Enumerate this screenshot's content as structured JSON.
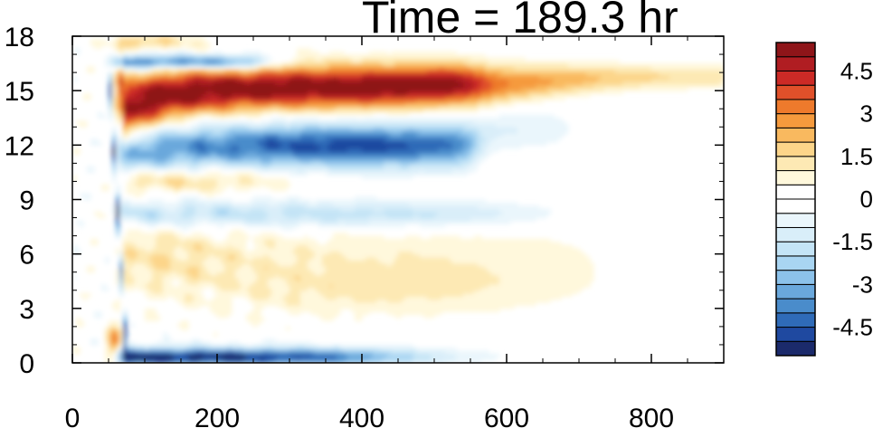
{
  "chart_data": {
    "type": "heatmap",
    "title": "Time = 189.3 hr",
    "xlabel": "",
    "ylabel": "",
    "xlim": [
      0,
      900
    ],
    "ylim": [
      0,
      18
    ],
    "x_ticks": [
      "0",
      "200",
      "400",
      "600",
      "800"
    ],
    "x_tick_values": [
      0,
      200,
      400,
      600,
      800
    ],
    "y_ticks": [
      "0",
      "3",
      "6",
      "9",
      "12",
      "15",
      "18"
    ],
    "y_tick_values": [
      0,
      3,
      6,
      9,
      12,
      15,
      18
    ],
    "colorbar": {
      "min": -5.5,
      "max": 5.5,
      "step": 0.5,
      "labels": [
        "4.5",
        "3",
        "1.5",
        "0",
        "-1.5",
        "-3",
        "-4.5"
      ],
      "label_values": [
        4.5,
        3,
        1.5,
        0,
        -1.5,
        -3,
        -4.5
      ],
      "colors": [
        "#1b2a6b",
        "#1f49a0",
        "#2f6bb8",
        "#4a8ccb",
        "#6aa8dc",
        "#8cc2ea",
        "#a9d5f2",
        "#c4e4f6",
        "#d9eef9",
        "#eaf6fc",
        "#ffffff",
        "#ffffff",
        "#fff8dc",
        "#fde9b4",
        "#fcd58a",
        "#f9b95f",
        "#f59a3d",
        "#ee7a2c",
        "#e0502a",
        "#cc2a26",
        "#b01d22",
        "#8e1519"
      ]
    },
    "features": [
      {
        "name": "upper positive band",
        "x_range": [
          65,
          900
        ],
        "y_center": 14.8,
        "peak": 5.5
      },
      {
        "name": "upper negative band",
        "x_range": [
          90,
          560
        ],
        "y_center": 12.0,
        "peak": -5.0
      },
      {
        "name": "lower boundary negative band",
        "x_range": [
          70,
          500
        ],
        "y_center": 0.4,
        "peak": -5.5
      },
      {
        "name": "top negative streak",
        "x_range": [
          55,
          280
        ],
        "y_center": 16.6,
        "peak": -4.5
      }
    ]
  }
}
